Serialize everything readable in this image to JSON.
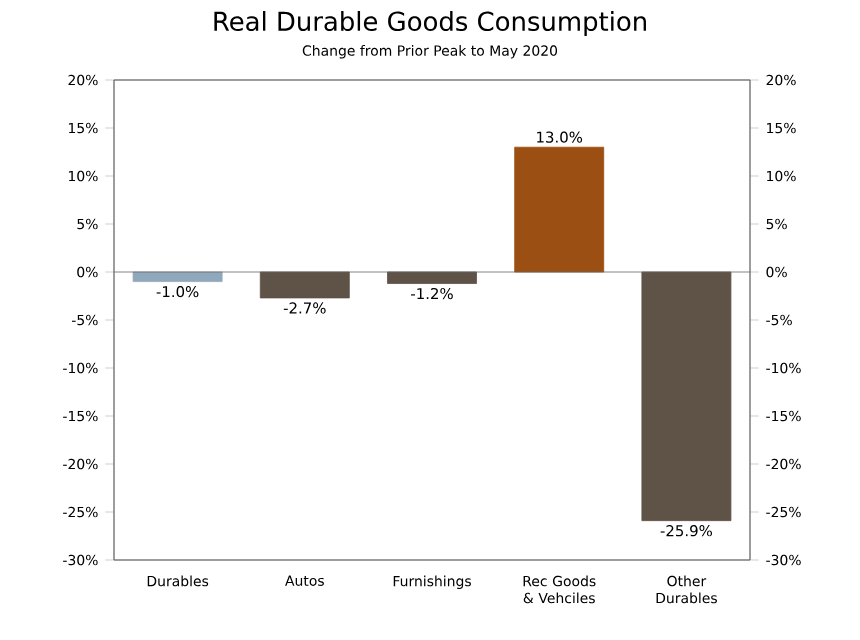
{
  "chart_data": {
    "type": "bar",
    "title": "Real Durable Goods Consumption",
    "subtitle": "Change from Prior Peak to May 2020",
    "categories": [
      "Durables",
      "Autos",
      "Furnishings",
      "Rec Goods & Vehciles",
      "Other Durables"
    ],
    "values": [
      -1.0,
      -2.7,
      -1.2,
      13.0,
      -25.9
    ],
    "colors": [
      "#8fa8bc",
      "#5f5246",
      "#5f5246",
      "#9b4f12",
      "#5f5246"
    ],
    "value_labels": [
      "-1.0%",
      "-2.7%",
      "-1.2%",
      "13.0%",
      "-25.9%"
    ],
    "ylim": [
      -30,
      20
    ],
    "yticks": [
      {
        "value": -30,
        "label": "-30%"
      },
      {
        "value": -25,
        "label": "-25%"
      },
      {
        "value": -20,
        "label": "-20%"
      },
      {
        "value": -15,
        "label": "-15%"
      },
      {
        "value": -10,
        "label": "-10%"
      },
      {
        "value": -5,
        "label": "-5%"
      },
      {
        "value": 0,
        "label": "0%"
      },
      {
        "value": 5,
        "label": "5%"
      },
      {
        "value": 10,
        "label": "10%"
      },
      {
        "value": 15,
        "label": "15%"
      },
      {
        "value": 20,
        "label": "20%"
      }
    ],
    "y2lim": [
      -30,
      20
    ],
    "y2ticks": [
      {
        "value": -30,
        "label": "-30%"
      },
      {
        "value": -25,
        "label": "-25%"
      },
      {
        "value": -20,
        "label": "-20%"
      },
      {
        "value": -15,
        "label": "-15%"
      },
      {
        "value": -10,
        "label": "-10%"
      },
      {
        "value": -5,
        "label": "-5%"
      },
      {
        "value": 0,
        "label": "0%"
      },
      {
        "value": 5,
        "label": "5%"
      },
      {
        "value": 10,
        "label": "10%"
      },
      {
        "value": 15,
        "label": "15%"
      },
      {
        "value": 20,
        "label": "20%"
      }
    ],
    "ylabel": null
  }
}
